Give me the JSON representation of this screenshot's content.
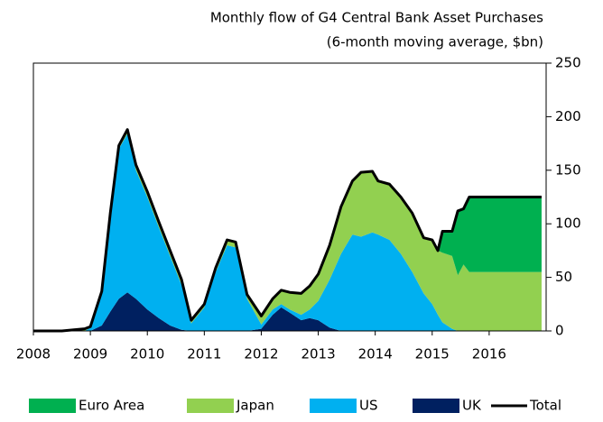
{
  "chart_data": {
    "type": "stacked-area",
    "title": "Monthly flow of G4 Central Bank Asset Purchases",
    "subtitle": "(6-month moving average, $bn)",
    "x": [
      2008.0,
      2008.5,
      2008.9,
      2009.0,
      2009.2,
      2009.35,
      2009.5,
      2009.65,
      2009.8,
      2010.0,
      2010.2,
      2010.4,
      2010.6,
      2010.77,
      2011.0,
      2011.2,
      2011.4,
      2011.55,
      2011.75,
      2012.0,
      2012.2,
      2012.35,
      2012.5,
      2012.7,
      2012.85,
      2013.0,
      2013.2,
      2013.4,
      2013.6,
      2013.75,
      2013.95,
      2014.05,
      2014.25,
      2014.45,
      2014.65,
      2014.85,
      2015.0,
      2015.1,
      2015.18,
      2015.35,
      2015.45,
      2015.55,
      2015.65,
      2016.92
    ],
    "series": [
      {
        "name": "UK",
        "color": "#002060",
        "type": "area",
        "values": [
          0,
          0,
          0,
          0,
          5,
          18,
          30,
          36,
          30,
          20,
          12,
          5,
          1,
          0,
          0,
          0,
          0,
          0,
          0,
          2,
          15,
          22,
          17,
          10,
          12,
          10,
          3,
          0,
          0,
          0,
          0,
          0,
          0,
          0,
          0,
          0,
          0,
          0,
          0,
          0,
          0,
          0,
          0,
          0
        ]
      },
      {
        "name": "US",
        "color": "#00b0f0",
        "type": "area",
        "values": [
          0,
          0,
          0,
          3,
          30,
          90,
          140,
          148,
          120,
          105,
          85,
          65,
          42,
          7,
          22,
          55,
          80,
          78,
          30,
          4,
          5,
          3,
          3,
          5,
          8,
          18,
          45,
          72,
          90,
          88,
          92,
          90,
          85,
          72,
          55,
          35,
          25,
          15,
          8,
          2,
          0,
          0,
          0,
          0
        ]
      },
      {
        "name": "Japan",
        "color": "#92d050",
        "type": "area",
        "values": [
          0,
          0,
          2,
          1,
          2,
          2,
          3,
          4,
          5,
          5,
          5,
          5,
          5,
          3,
          3,
          4,
          5,
          5,
          4,
          8,
          10,
          13,
          16,
          20,
          22,
          25,
          32,
          44,
          50,
          60,
          57,
          50,
          52,
          53,
          55,
          52,
          60,
          60,
          65,
          68,
          52,
          62,
          55,
          55
        ]
      },
      {
        "name": "Euro Area",
        "color": "#00b050",
        "type": "area",
        "values": [
          0,
          0,
          0,
          0,
          0,
          0,
          0,
          0,
          0,
          0,
          0,
          0,
          0,
          0,
          0,
          0,
          0,
          0,
          0,
          0,
          0,
          0,
          0,
          0,
          0,
          0,
          0,
          0,
          0,
          0,
          0,
          0,
          0,
          0,
          0,
          0,
          0,
          0,
          20,
          23,
          60,
          52,
          70,
          70
        ]
      },
      {
        "name": "Total",
        "color": "#000000",
        "type": "line",
        "values": [
          0,
          0,
          2,
          4,
          37,
          110,
          173,
          188,
          155,
          130,
          102,
          75,
          48,
          10,
          25,
          59,
          85,
          83,
          34,
          14,
          30,
          38,
          36,
          35,
          42,
          53,
          80,
          116,
          140,
          148,
          149,
          140,
          137,
          125,
          110,
          87,
          85,
          75,
          93,
          93,
          112,
          114,
          125,
          125
        ]
      }
    ],
    "xlim": [
      2008,
      2017
    ],
    "xticks": [
      2008,
      2009,
      2010,
      2011,
      2012,
      2013,
      2014,
      2015,
      2016
    ],
    "ylim": [
      0,
      250
    ],
    "yticks": [
      0,
      50,
      100,
      150,
      200,
      250
    ],
    "y_axis_side": "right"
  }
}
